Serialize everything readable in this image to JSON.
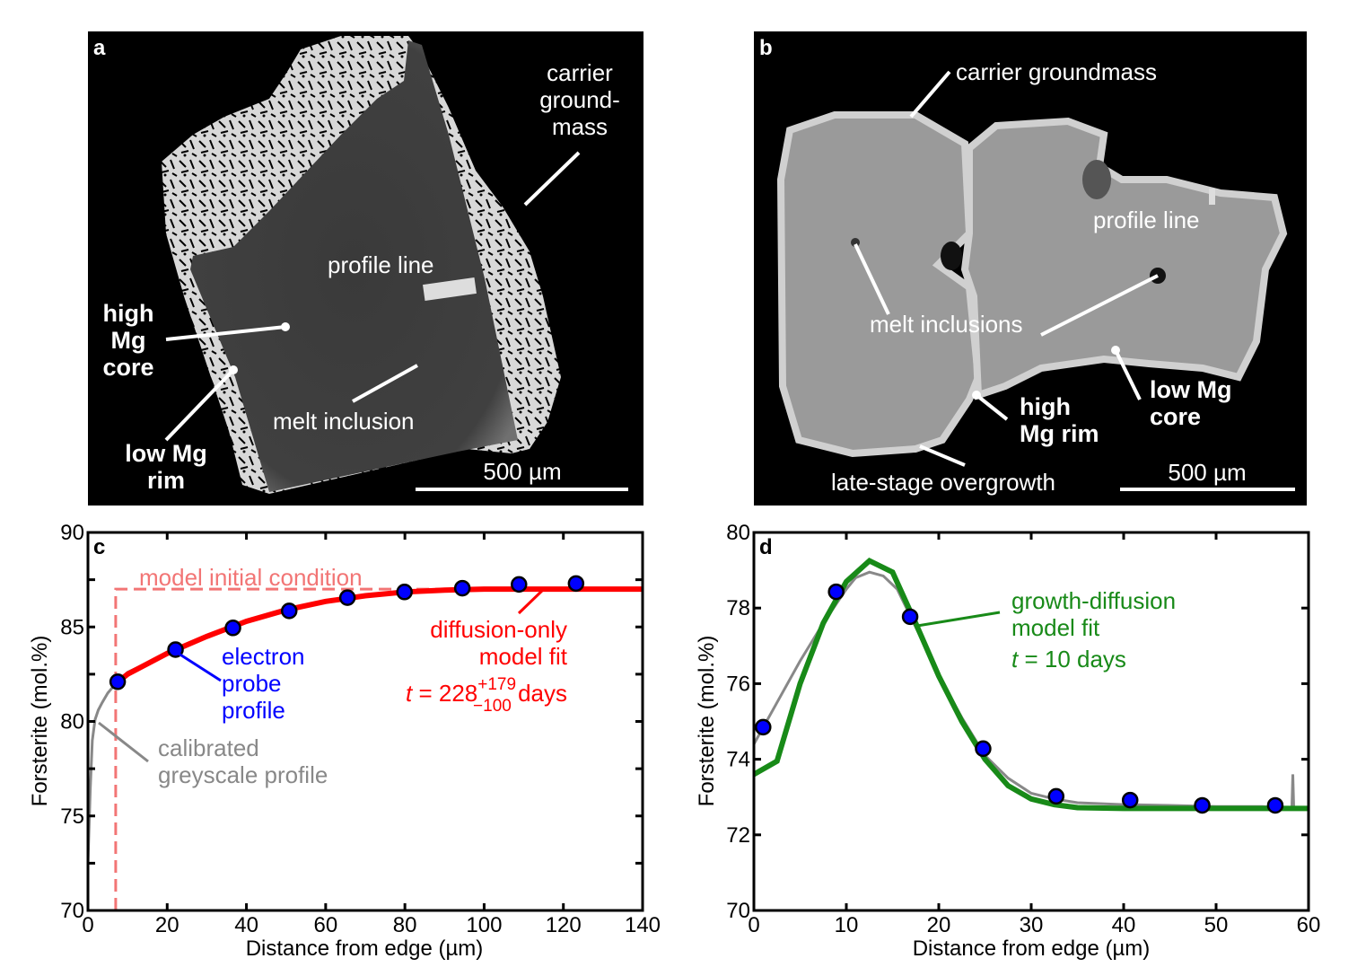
{
  "panels": {
    "a": {
      "letter": "a",
      "labels": {
        "carrier": [
          "carrier",
          "ground-",
          "mass"
        ],
        "profile_line": "profile line",
        "core": [
          "high",
          "Mg",
          "core"
        ],
        "rim": [
          "low Mg",
          "rim"
        ],
        "melt_inclusion": "melt inclusion",
        "scale_bar": "500 µm"
      }
    },
    "b": {
      "letter": "b",
      "labels": {
        "carrier": "carrier groundmass",
        "profile_line": "profile line",
        "melt_inclusions": "melt inclusions",
        "core": [
          "low Mg",
          "core"
        ],
        "rim": [
          "high",
          "Mg rim"
        ],
        "overgrowth": "late-stage overgrowth",
        "scale_bar": "500 µm"
      }
    }
  },
  "chart_data": [
    {
      "panel": "c",
      "type": "line",
      "xlabel": "Distance from edge (µm)",
      "ylabel": "Forsterite (mol.%)",
      "xlim": [
        0,
        140
      ],
      "ylim": [
        70,
        90
      ],
      "xticks": [
        0,
        20,
        40,
        60,
        80,
        100,
        120,
        140
      ],
      "yticks": [
        70,
        75,
        80,
        85,
        90
      ],
      "grid": false,
      "colors": {
        "probe": "#0000ff",
        "fit": "#ff0000",
        "initial": "#f27575",
        "greyscale": "#888888"
      },
      "annotations": {
        "initial": "model initial condition",
        "fit": [
          "diffusion-only",
          "model fit"
        ],
        "t_prefix": "t",
        "t_eq": " = 228",
        "t_plus": "+179",
        "t_minus": "−100",
        "t_unit": " days",
        "probe": [
          "electron",
          "probe",
          "profile"
        ],
        "greyscale": [
          "calibrated",
          "greyscale profile"
        ]
      },
      "series": [
        {
          "name": "electron probe profile",
          "kind": "points",
          "x": [
            7.5,
            22.1,
            36.6,
            50.8,
            65.5,
            79.9,
            94.5,
            108.8,
            123.2
          ],
          "y": [
            82.1,
            83.8,
            84.95,
            85.85,
            86.55,
            86.85,
            87.05,
            87.25,
            87.3
          ]
        },
        {
          "name": "diffusion-only model fit",
          "kind": "line",
          "x": [
            7,
            10,
            20,
            30,
            40,
            50,
            60,
            70,
            80,
            90,
            100,
            110,
            140
          ],
          "y": [
            82.0,
            82.5,
            83.6,
            84.5,
            85.3,
            85.9,
            86.35,
            86.65,
            86.85,
            86.95,
            87.0,
            87.0,
            87.0
          ]
        },
        {
          "name": "model initial condition",
          "kind": "dashed",
          "x": [
            7,
            7,
            140
          ],
          "y": [
            70,
            87,
            87
          ]
        },
        {
          "name": "calibrated greyscale profile",
          "kind": "thin",
          "x": [
            0,
            0.6,
            1.1,
            1.8,
            2.6,
            3.6,
            5,
            7,
            10,
            20,
            30,
            40,
            50,
            60,
            70,
            80,
            90,
            100,
            110,
            115
          ],
          "y": [
            72.5,
            76.5,
            79.0,
            80.1,
            80.6,
            81.0,
            81.5,
            82.0,
            82.6,
            83.6,
            84.5,
            85.3,
            85.9,
            86.35,
            86.65,
            86.85,
            86.95,
            87.0,
            87.0,
            87.0
          ]
        }
      ]
    },
    {
      "panel": "d",
      "type": "line",
      "xlabel": "Distance from edge (µm)",
      "ylabel": "Forsterite (mol.%)",
      "xlim": [
        0,
        60
      ],
      "ylim": [
        70,
        80
      ],
      "xticks": [
        0,
        10,
        20,
        30,
        40,
        50,
        60
      ],
      "yticks": [
        70,
        72,
        74,
        76,
        78,
        80
      ],
      "grid": false,
      "colors": {
        "probe": "#0000ff",
        "fit": "#188a18",
        "greyscale": "#888888"
      },
      "annotations": {
        "fit": [
          "growth-diffusion",
          "model fit"
        ],
        "t_prefix": "t",
        "t_rest": " = 10 days"
      },
      "series": [
        {
          "name": "electron probe profile",
          "kind": "points",
          "x": [
            1.0,
            8.9,
            16.9,
            24.8,
            32.7,
            40.7,
            48.5,
            56.4
          ],
          "y": [
            74.85,
            78.43,
            77.77,
            74.28,
            73.02,
            72.92,
            72.78,
            72.78
          ]
        },
        {
          "name": "growth-diffusion model fit",
          "kind": "line",
          "x": [
            0,
            2.5,
            5,
            7.5,
            10,
            12.5,
            15,
            17.5,
            20,
            22.5,
            25,
            27.5,
            30,
            32.5,
            35,
            40,
            60
          ],
          "y": [
            73.6,
            73.95,
            76.0,
            77.6,
            78.7,
            79.25,
            78.95,
            77.6,
            76.2,
            75.0,
            74.0,
            73.3,
            72.95,
            72.8,
            72.72,
            72.7,
            72.7
          ]
        },
        {
          "name": "calibrated greyscale profile",
          "kind": "thin",
          "x": [
            0,
            2.5,
            5,
            7.5,
            10,
            11,
            12.5,
            14,
            15.5,
            17.5,
            20,
            22.5,
            25,
            27.5,
            30,
            32.5,
            35,
            40,
            45,
            50,
            55,
            58.2,
            58.3,
            58.4
          ],
          "y": [
            74.4,
            75.5,
            76.6,
            77.6,
            78.5,
            78.8,
            78.95,
            78.85,
            78.5,
            77.5,
            76.2,
            75.1,
            74.1,
            73.5,
            73.1,
            72.95,
            72.85,
            72.8,
            72.78,
            72.75,
            72.75,
            72.7,
            73.6,
            72.7
          ]
        }
      ]
    }
  ]
}
